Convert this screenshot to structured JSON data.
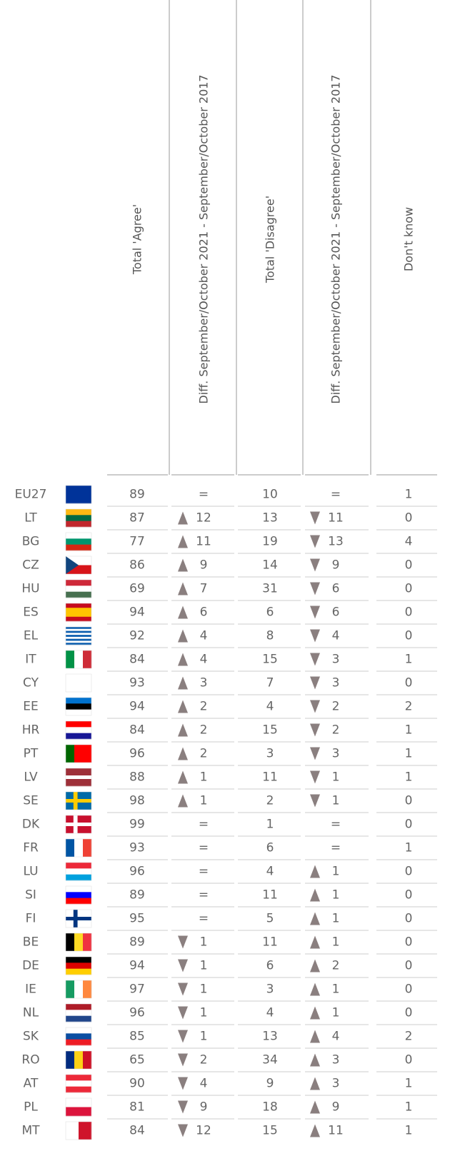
{
  "table": {
    "headers": [
      "Total 'Agree'",
      "Diff. September/October 2021 - September/October 2017",
      "Total 'Disagree'",
      "Diff. September/October 2021 - September/October 2017",
      "Don't know"
    ],
    "rows": [
      {
        "country": "EU27",
        "flag": {
          "kind": "h",
          "colors": [
            "#003399"
          ]
        },
        "agree": 89,
        "diff_agree": "=",
        "disagree": 10,
        "diff_disagree": "=",
        "dont_know": 1
      },
      {
        "country": "LT",
        "flag": {
          "kind": "h",
          "colors": [
            "#fdb913",
            "#006a44",
            "#c1272d"
          ]
        },
        "agree": 87,
        "diff_agree": {
          "arrow": "up",
          "value": 12
        },
        "disagree": 13,
        "diff_disagree": {
          "arrow": "down",
          "value": 11
        },
        "dont_know": 0
      },
      {
        "country": "BG",
        "flag": {
          "kind": "h",
          "colors": [
            "#ffffff",
            "#00966e",
            "#d62612"
          ]
        },
        "agree": 77,
        "diff_agree": {
          "arrow": "up",
          "value": 11
        },
        "disagree": 19,
        "diff_disagree": {
          "arrow": "down",
          "value": 13
        },
        "dont_know": 4
      },
      {
        "country": "CZ",
        "flag": {
          "kind": "tri",
          "colors": [
            "#ffffff",
            "#d7141a",
            "#11457e"
          ]
        },
        "agree": 86,
        "diff_agree": {
          "arrow": "up",
          "value": 9
        },
        "disagree": 14,
        "diff_disagree": {
          "arrow": "down",
          "value": 9
        },
        "dont_know": 0
      },
      {
        "country": "HU",
        "flag": {
          "kind": "h",
          "colors": [
            "#ce2939",
            "#ffffff",
            "#477050"
          ]
        },
        "agree": 69,
        "diff_agree": {
          "arrow": "up",
          "value": 7
        },
        "disagree": 31,
        "diff_disagree": {
          "arrow": "down",
          "value": 6
        },
        "dont_know": 0
      },
      {
        "country": "ES",
        "flag": {
          "kind": "h",
          "colors": [
            "#c60b1e",
            "#ffc400",
            "#ffc400",
            "#c60b1e"
          ]
        },
        "agree": 94,
        "diff_agree": {
          "arrow": "up",
          "value": 6
        },
        "disagree": 6,
        "diff_disagree": {
          "arrow": "down",
          "value": 6
        },
        "dont_know": 0
      },
      {
        "country": "EL",
        "flag": {
          "kind": "h",
          "colors": [
            "#0d5eaf",
            "#ffffff",
            "#0d5eaf",
            "#ffffff",
            "#0d5eaf",
            "#ffffff",
            "#0d5eaf",
            "#ffffff",
            "#0d5eaf"
          ]
        },
        "agree": 92,
        "diff_agree": {
          "arrow": "up",
          "value": 4
        },
        "disagree": 8,
        "diff_disagree": {
          "arrow": "down",
          "value": 4
        },
        "dont_know": 0
      },
      {
        "country": "IT",
        "flag": {
          "kind": "v",
          "colors": [
            "#009246",
            "#ffffff",
            "#ce2b37"
          ]
        },
        "agree": 84,
        "diff_agree": {
          "arrow": "up",
          "value": 4
        },
        "disagree": 15,
        "diff_disagree": {
          "arrow": "down",
          "value": 3
        },
        "dont_know": 1
      },
      {
        "country": "CY",
        "flag": {
          "kind": "h",
          "colors": [
            "#ffffff"
          ]
        },
        "agree": 93,
        "diff_agree": {
          "arrow": "up",
          "value": 3
        },
        "disagree": 7,
        "diff_disagree": {
          "arrow": "down",
          "value": 3
        },
        "dont_know": 0
      },
      {
        "country": "EE",
        "flag": {
          "kind": "h",
          "colors": [
            "#0072ce",
            "#000000",
            "#ffffff"
          ]
        },
        "agree": 94,
        "diff_agree": {
          "arrow": "up",
          "value": 2
        },
        "disagree": 4,
        "diff_disagree": {
          "arrow": "down",
          "value": 2
        },
        "dont_know": 2
      },
      {
        "country": "HR",
        "flag": {
          "kind": "h",
          "colors": [
            "#ff0000",
            "#ffffff",
            "#171796"
          ]
        },
        "agree": 84,
        "diff_agree": {
          "arrow": "up",
          "value": 2
        },
        "disagree": 15,
        "diff_disagree": {
          "arrow": "down",
          "value": 2
        },
        "dont_know": 1
      },
      {
        "country": "PT",
        "flag": {
          "kind": "v",
          "colors": [
            "#006600",
            "#ff0000",
            "#ff0000"
          ]
        },
        "agree": 96,
        "diff_agree": {
          "arrow": "up",
          "value": 2
        },
        "disagree": 3,
        "diff_disagree": {
          "arrow": "down",
          "value": 3
        },
        "dont_know": 1
      },
      {
        "country": "LV",
        "flag": {
          "kind": "h",
          "colors": [
            "#9e3039",
            "#9e3039",
            "#ffffff",
            "#9e3039",
            "#9e3039"
          ]
        },
        "agree": 88,
        "diff_agree": {
          "arrow": "up",
          "value": 1
        },
        "disagree": 11,
        "diff_disagree": {
          "arrow": "down",
          "value": 1
        },
        "dont_know": 1
      },
      {
        "country": "SE",
        "flag": {
          "kind": "cross",
          "colors": [
            "#006aa7",
            "#fecc00"
          ]
        },
        "agree": 98,
        "diff_agree": {
          "arrow": "up",
          "value": 1
        },
        "disagree": 2,
        "diff_disagree": {
          "arrow": "down",
          "value": 1
        },
        "dont_know": 0
      },
      {
        "country": "DK",
        "flag": {
          "kind": "cross",
          "colors": [
            "#c8102e",
            "#ffffff"
          ]
        },
        "agree": 99,
        "diff_agree": "=",
        "disagree": 1,
        "diff_disagree": "=",
        "dont_know": 0
      },
      {
        "country": "FR",
        "flag": {
          "kind": "v",
          "colors": [
            "#0055a4",
            "#ffffff",
            "#ef4135"
          ]
        },
        "agree": 93,
        "diff_agree": "=",
        "disagree": 6,
        "diff_disagree": "=",
        "dont_know": 1
      },
      {
        "country": "LU",
        "flag": {
          "kind": "h",
          "colors": [
            "#ed2939",
            "#ffffff",
            "#00a1de"
          ]
        },
        "agree": 96,
        "diff_agree": "=",
        "disagree": 4,
        "diff_disagree": {
          "arrow": "up",
          "value": 1
        },
        "dont_know": 0
      },
      {
        "country": "SI",
        "flag": {
          "kind": "h",
          "colors": [
            "#ffffff",
            "#0000ff",
            "#ff0000"
          ]
        },
        "agree": 89,
        "diff_agree": "=",
        "disagree": 11,
        "diff_disagree": {
          "arrow": "up",
          "value": 1
        },
        "dont_know": 0
      },
      {
        "country": "FI",
        "flag": {
          "kind": "cross",
          "colors": [
            "#ffffff",
            "#003580"
          ]
        },
        "agree": 95,
        "diff_agree": "=",
        "disagree": 5,
        "diff_disagree": {
          "arrow": "up",
          "value": 1
        },
        "dont_know": 0
      },
      {
        "country": "BE",
        "flag": {
          "kind": "v",
          "colors": [
            "#000000",
            "#fdda24",
            "#ef3340"
          ]
        },
        "agree": 89,
        "diff_agree": {
          "arrow": "down",
          "value": 1
        },
        "disagree": 11,
        "diff_disagree": {
          "arrow": "up",
          "value": 1
        },
        "dont_know": 0
      },
      {
        "country": "DE",
        "flag": {
          "kind": "h",
          "colors": [
            "#000000",
            "#dd0000",
            "#ffce00"
          ]
        },
        "agree": 94,
        "diff_agree": {
          "arrow": "down",
          "value": 1
        },
        "disagree": 6,
        "diff_disagree": {
          "arrow": "up",
          "value": 2
        },
        "dont_know": 0
      },
      {
        "country": "IE",
        "flag": {
          "kind": "v",
          "colors": [
            "#169b62",
            "#ffffff",
            "#ff883e"
          ]
        },
        "agree": 97,
        "diff_agree": {
          "arrow": "down",
          "value": 1
        },
        "disagree": 3,
        "diff_disagree": {
          "arrow": "up",
          "value": 1
        },
        "dont_know": 0
      },
      {
        "country": "NL",
        "flag": {
          "kind": "h",
          "colors": [
            "#ae1c28",
            "#ffffff",
            "#21468b"
          ]
        },
        "agree": 96,
        "diff_agree": {
          "arrow": "down",
          "value": 1
        },
        "disagree": 4,
        "diff_disagree": {
          "arrow": "up",
          "value": 1
        },
        "dont_know": 0
      },
      {
        "country": "SK",
        "flag": {
          "kind": "h",
          "colors": [
            "#ffffff",
            "#0b4ea2",
            "#ee1c25"
          ]
        },
        "agree": 85,
        "diff_agree": {
          "arrow": "down",
          "value": 1
        },
        "disagree": 13,
        "diff_disagree": {
          "arrow": "up",
          "value": 4
        },
        "dont_know": 2
      },
      {
        "country": "RO",
        "flag": {
          "kind": "v",
          "colors": [
            "#002b7f",
            "#fcd116",
            "#ce1126"
          ]
        },
        "agree": 65,
        "diff_agree": {
          "arrow": "down",
          "value": 2
        },
        "disagree": 34,
        "diff_disagree": {
          "arrow": "up",
          "value": 3
        },
        "dont_know": 0
      },
      {
        "country": "AT",
        "flag": {
          "kind": "h",
          "colors": [
            "#ed2939",
            "#ffffff",
            "#ed2939"
          ]
        },
        "agree": 90,
        "diff_agree": {
          "arrow": "down",
          "value": 4
        },
        "disagree": 9,
        "diff_disagree": {
          "arrow": "up",
          "value": 3
        },
        "dont_know": 1
      },
      {
        "country": "PL",
        "flag": {
          "kind": "h",
          "colors": [
            "#ffffff",
            "#dc143c"
          ]
        },
        "agree": 81,
        "diff_agree": {
          "arrow": "down",
          "value": 9
        },
        "disagree": 18,
        "diff_disagree": {
          "arrow": "up",
          "value": 9
        },
        "dont_know": 1
      },
      {
        "country": "MT",
        "flag": {
          "kind": "v",
          "colors": [
            "#ffffff",
            "#cf142b"
          ]
        },
        "agree": 84,
        "diff_agree": {
          "arrow": "down",
          "value": 12
        },
        "disagree": 15,
        "diff_disagree": {
          "arrow": "up",
          "value": 11
        },
        "dont_know": 1
      }
    ]
  }
}
